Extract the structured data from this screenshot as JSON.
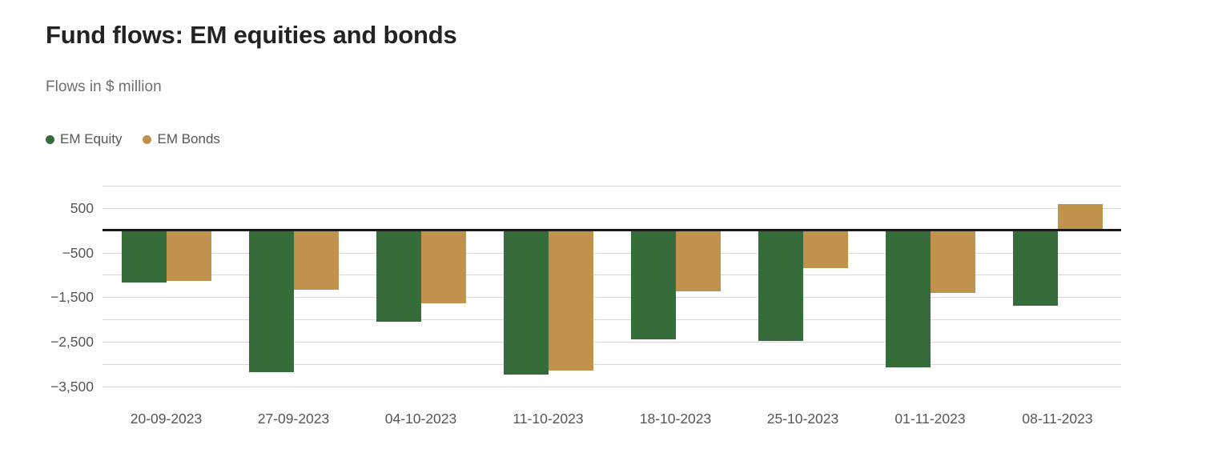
{
  "header": {
    "title": "Fund flows: EM equities and bonds",
    "subtitle": "Flows in $ million"
  },
  "legend": {
    "items": [
      {
        "label": "EM Equity",
        "color": "#366B3A"
      },
      {
        "label": "EM Bonds",
        "color": "#C0924D"
      }
    ]
  },
  "chart_data": {
    "type": "bar",
    "title": "Fund flows: EM equities and bonds",
    "subtitle": "Flows in $ million",
    "unit": "$ million",
    "categories": [
      "20-09-2023",
      "27-09-2023",
      "04-10-2023",
      "11-10-2023",
      "18-10-2023",
      "25-10-2023",
      "01-11-2023",
      "08-11-2023"
    ],
    "series": [
      {
        "name": "EM Equity",
        "color": "#366B3A",
        "values": [
          -1180,
          -3190,
          -2060,
          -3240,
          -2450,
          -2490,
          -3080,
          -1700
        ]
      },
      {
        "name": "EM Bonds",
        "color": "#C0924D",
        "values": [
          -1130,
          -1340,
          -1640,
          -3140,
          -1370,
          -850,
          -1400,
          590
        ]
      }
    ],
    "ylim": [
      -3900,
      1000
    ],
    "yticks": [
      {
        "value": 500,
        "label": "500"
      },
      {
        "value": -500,
        "label": "−500"
      },
      {
        "value": -1500,
        "label": "−1,500"
      },
      {
        "value": -2500,
        "label": "−2,500"
      },
      {
        "value": -3500,
        "label": "−3,500"
      }
    ],
    "gridline_values": [
      1000,
      500,
      -500,
      -1000,
      -1500,
      -2000,
      -2500,
      -3000,
      -3500
    ],
    "zero_line": true,
    "grid": true,
    "legend_position": "top-left",
    "colors": {
      "grid": "#d9d9d9",
      "zero_line": "#1a1a1a",
      "axis_text": "#565656"
    }
  }
}
